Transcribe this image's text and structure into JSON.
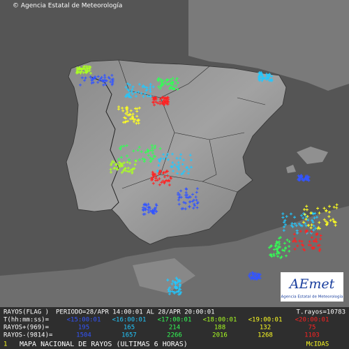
{
  "header": {
    "copyright": "© Agencia Estatal de Meteorología"
  },
  "logo": {
    "name": "AEmet",
    "subtitle": "Agencia Estatal de Meteorología"
  },
  "summary": {
    "label": "RAYOS(FLAG )",
    "period": "PERIODO=28/APR 14:00:01 AL 28/APR 20:00:01",
    "total": "T.rayos=10783"
  },
  "legend": {
    "time_label": "T(hh:mm:ss)=",
    "positive_label": "RAYOS+(969)=",
    "negative_label": "RAYOS-(9814)=",
    "periods": [
      {
        "label": "<15:00:01",
        "color": "#3355ff",
        "positive": 195,
        "negative": 1504
      },
      {
        "label": "<16:00:01",
        "color": "#22c8ff",
        "positive": 165,
        "negative": 1657
      },
      {
        "label": "<17:00:01",
        "color": "#33ff55",
        "positive": 214,
        "negative": 2266
      },
      {
        "label": "<18:00:01",
        "color": "#aaff22",
        "positive": 188,
        "negative": 2016
      },
      {
        "label": "<19:00:01",
        "color": "#ffff22",
        "positive": 132,
        "negative": 1268
      },
      {
        "label": "<20:00:01",
        "color": "#ff2222",
        "positive": 75,
        "negative": 1103
      }
    ]
  },
  "footer": {
    "frame": "1",
    "title": "MAPA NACIONAL DE RAYOS (ULTIMAS 6 HORAS)",
    "source": "McIDAS"
  }
}
